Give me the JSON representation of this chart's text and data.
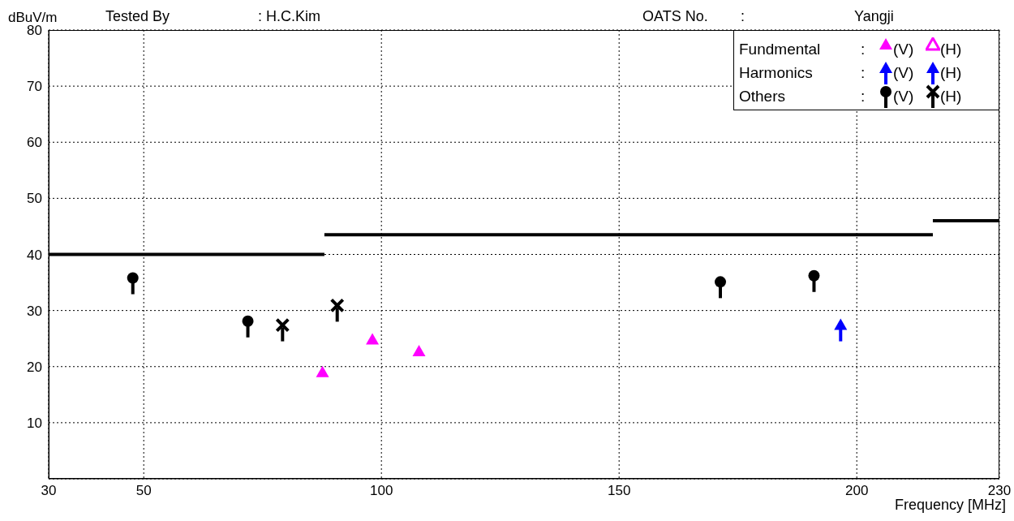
{
  "chart_data": {
    "type": "scatter",
    "xlabel": "Frequency [MHz]",
    "ylabel": "dBuV/m",
    "annotations": [
      "Tested By",
      ": H.C.Kim",
      "OATS No.",
      ":",
      "Yangji",
      "Fundmental",
      ":",
      "Harmonics",
      ":",
      "Others",
      ":"
    ],
    "xlim": [
      30,
      230
    ],
    "xticks": [
      30,
      50,
      100,
      150,
      200,
      230
    ],
    "ylim": [
      0,
      80
    ],
    "yticks": [
      {
        "value": 0,
        "label": null
      },
      10,
      20,
      30,
      40,
      50,
      60,
      70,
      80
    ],
    "grid": true,
    "legend": "top right",
    "series": [
      {
        "name": "(V)",
        "color": "#ff00ff",
        "marker": "triangle",
        "x": [
          87.6,
          98.1,
          107.9
        ],
        "values": [
          19.0,
          24.8,
          22.7
        ]
      },
      {
        "name": "(H)",
        "color": "#ff00ff",
        "marker": "triangle"
      },
      {
        "name": "(V)",
        "color": "#0000ff",
        "marker": "triangle",
        "x": [
          196.6
        ],
        "values": [
          27.4
        ]
      },
      {
        "name": "(H)",
        "color": "#0000ff",
        "marker": "triangle"
      },
      {
        "name": "(V)",
        "color": "#000000",
        "marker": "circle",
        "x": [
          47.7,
          71.9,
          171.3,
          191.0
        ],
        "values": [
          35.8,
          28.1,
          35.1,
          36.2
        ]
      },
      {
        "name": "(H)",
        "color": "#000000",
        "marker": "cross",
        "x": [
          79.2,
          90.7
        ],
        "values": [
          27.4,
          30.9
        ]
      },
      {
        "type": "line",
        "color": "#000000",
        "x": [
          30,
          88
        ],
        "values": [
          40,
          40
        ]
      },
      {
        "type": "line",
        "color": "#000000",
        "x": [
          88,
          216
        ],
        "values": [
          43.5,
          43.5
        ]
      },
      {
        "type": "line",
        "color": "#000000",
        "x": [
          216,
          230
        ],
        "values": [
          46,
          46
        ]
      }
    ]
  }
}
